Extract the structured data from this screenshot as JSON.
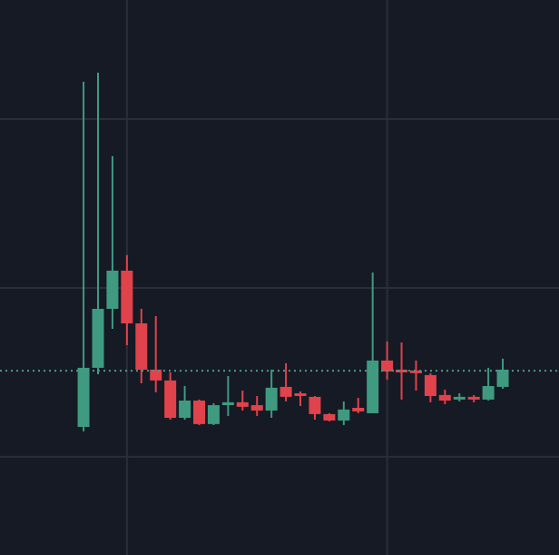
{
  "chart_data": {
    "type": "candlestick",
    "x": [
      0,
      1,
      2,
      3,
      4,
      5,
      6,
      7,
      8,
      9,
      10,
      11,
      12,
      13,
      14,
      15,
      16,
      17,
      18,
      19,
      20,
      21,
      22,
      23,
      24,
      25,
      26,
      27,
      28,
      29
    ],
    "open": [
      1.177,
      1.527,
      1.876,
      2.102,
      1.79,
      1.516,
      1.452,
      1.231,
      1.333,
      1.194,
      1.306,
      1.323,
      1.306,
      1.274,
      1.414,
      1.376,
      1.355,
      1.253,
      1.215,
      1.29,
      1.258,
      1.57,
      1.516,
      1.511,
      1.484,
      1.366,
      1.339,
      1.355,
      1.339,
      1.414
    ],
    "high": [
      3.22,
      3.274,
      2.78,
      2.194,
      1.876,
      1.833,
      1.5,
      1.419,
      1.339,
      1.317,
      1.478,
      1.392,
      1.36,
      1.516,
      1.554,
      1.387,
      1.36,
      1.258,
      1.328,
      1.349,
      2.091,
      1.683,
      1.677,
      1.57,
      1.495,
      1.398,
      1.376,
      1.366,
      1.527,
      1.581
    ],
    "low": [
      1.151,
      1.489,
      1.758,
      1.661,
      1.435,
      1.382,
      1.22,
      1.22,
      1.188,
      1.188,
      1.242,
      1.274,
      1.242,
      1.231,
      1.328,
      1.301,
      1.22,
      1.21,
      1.188,
      1.258,
      1.258,
      1.457,
      1.339,
      1.392,
      1.323,
      1.312,
      1.328,
      1.323,
      1.333,
      1.403
    ],
    "close": [
      1.527,
      1.876,
      2.102,
      1.79,
      1.516,
      1.452,
      1.231,
      1.333,
      1.194,
      1.306,
      1.323,
      1.296,
      1.274,
      1.409,
      1.355,
      1.36,
      1.253,
      1.215,
      1.28,
      1.269,
      1.57,
      1.505,
      1.5,
      1.495,
      1.36,
      1.333,
      1.355,
      1.339,
      1.419,
      1.516
    ],
    "up_color": "#3f9a80",
    "down_color": "#e0434b",
    "last_price": 1.51,
    "last_price_color": "#4a9b8a",
    "xlim": [
      -5.78,
      32.89
    ],
    "xticks": [
      3,
      21
    ],
    "ylim": [
      0.419,
      3.704
    ],
    "yticks": [
      1,
      2,
      3
    ],
    "grid": true,
    "grid_color": "#2a2e39",
    "background": "#161a25"
  }
}
